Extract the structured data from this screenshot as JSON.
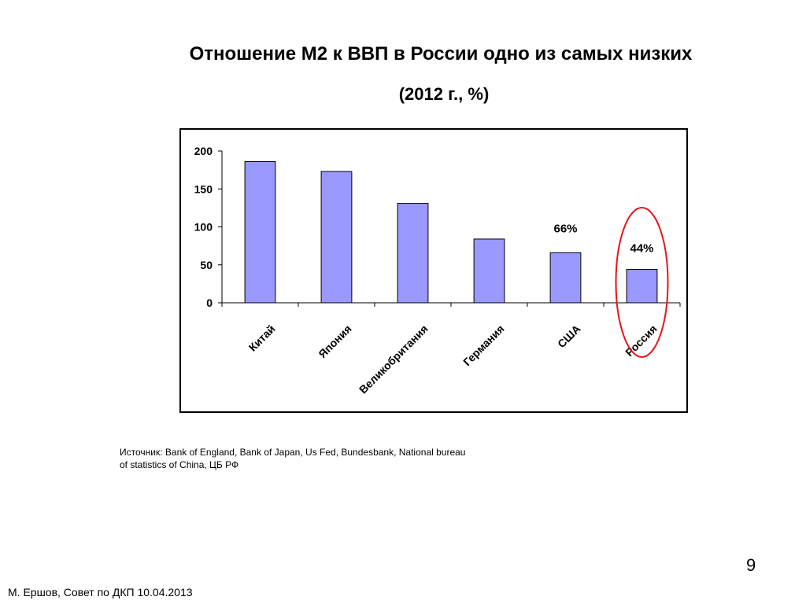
{
  "slide": {
    "title": "Отношение М2 к ВВП в России одно из самых низких",
    "subtitle": "(2012 г., %)",
    "source": "Источник: Bank of England, Bank of Japan, Us Fed, Bundesbank, National bureau of statistics of China, ЦБ РФ",
    "page_number": "9",
    "footer": "М. Ершов, Совет по ДКП 10.04.2013"
  },
  "chart_data": {
    "type": "bar",
    "categories": [
      "Китай",
      "Япония",
      "Великобритания",
      "Германия",
      "США",
      "Россия"
    ],
    "values": [
      186,
      173,
      131,
      84,
      66,
      44
    ],
    "ylim": [
      0,
      200
    ],
    "yticks": [
      "0",
      "50",
      "100",
      "150",
      "200"
    ],
    "data_labels": [
      {
        "category": "США",
        "text": "66%"
      },
      {
        "category": "Россия",
        "text": "44%"
      }
    ],
    "highlight": {
      "category": "Россия",
      "color": "#e8141b"
    },
    "bar_color": "#9999ff",
    "grid": false,
    "legend": "none"
  }
}
